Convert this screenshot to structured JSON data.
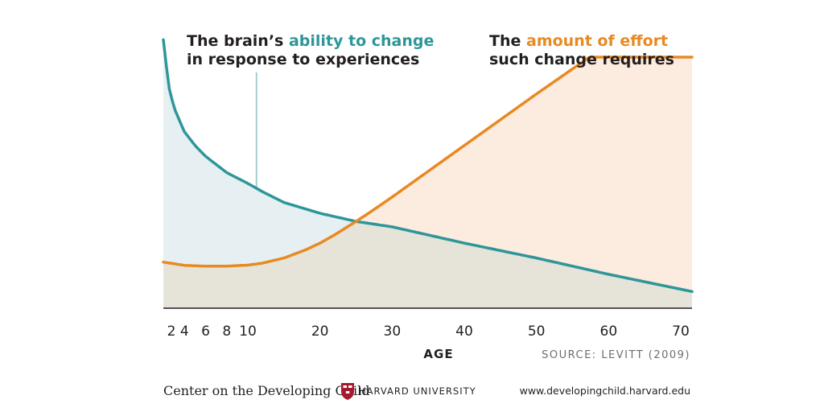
{
  "chart_data": {
    "type": "line",
    "xlabel": "AGE",
    "source": "SOURCE: LEVITT (2009)",
    "x_ticks": [
      2,
      4,
      6,
      8,
      10,
      20,
      30,
      40,
      50,
      60,
      70
    ],
    "xlim": [
      2,
      70
    ],
    "ylim": [
      0,
      100
    ],
    "series": [
      {
        "key": "ability",
        "annotation_line1_prefix": "The brain’s ",
        "annotation_line1_highlight": "ability to change",
        "annotation_line2": "in response to experiences",
        "color": "#2e9699",
        "fill": "#e6f0f2",
        "x": [
          2,
          2.5,
          3,
          4,
          5,
          6,
          8,
          10,
          12,
          15,
          20,
          25,
          30,
          40,
          50,
          60,
          70
        ],
        "y": [
          99,
          82,
          74,
          65,
          60,
          56,
          50,
          46,
          43,
          39,
          35,
          32,
          30,
          24,
          18.5,
          12.5,
          7
        ]
      },
      {
        "key": "effort",
        "annotation_line1_prefix": "The ",
        "annotation_line1_highlight": "amount of effort",
        "annotation_line2": "such change requires",
        "color": "#e88a23",
        "fill": "#fcebdf",
        "x": [
          2,
          4,
          6,
          8,
          10,
          12,
          15,
          18,
          20,
          22,
          25,
          27,
          30,
          35,
          40,
          50,
          60,
          70
        ],
        "y": [
          17,
          15.8,
          15.5,
          15.5,
          15.9,
          16.6,
          18.5,
          21.5,
          24,
          27,
          32,
          35.5,
          41,
          50.5,
          60,
          79,
          97.5,
          115
        ]
      }
    ]
  },
  "footer": {
    "org": "Center on the Developing Child",
    "university": "HARVARD UNIVERSITY",
    "url": "www.developingchild.harvard.edu"
  },
  "colors": {
    "overlap_fill": "#e6e3d8",
    "axis": "#231f20",
    "crest": "#a6192e"
  }
}
